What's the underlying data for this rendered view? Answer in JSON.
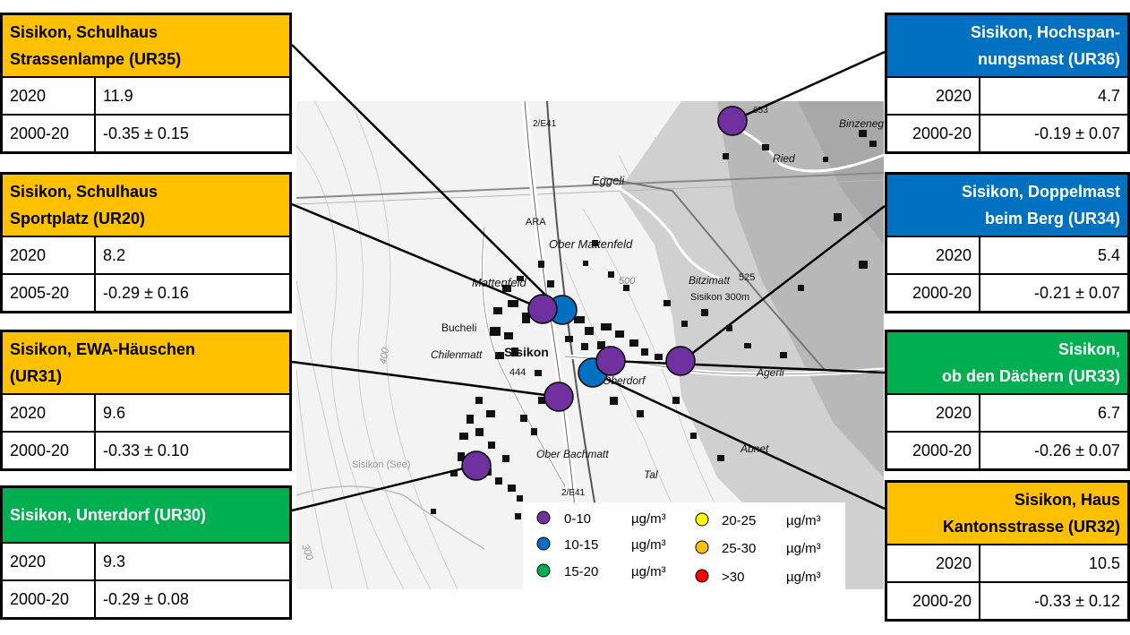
{
  "panels_left": [
    {
      "title_lines": [
        "Sisikon, Schulhaus",
        "Strassenlampe (UR35)"
      ],
      "color": "orange",
      "rows": [
        {
          "period": "2020",
          "value": "11.9"
        },
        {
          "period": "2000-20",
          "value": "-0.35 ± 0.15"
        }
      ]
    },
    {
      "title_lines": [
        "Sisikon, Schulhaus",
        "Sportplatz (UR20)"
      ],
      "color": "orange",
      "rows": [
        {
          "period": "2020",
          "value": "8.2"
        },
        {
          "period": "2005-20",
          "value": "-0.29 ± 0.16"
        }
      ]
    },
    {
      "title_lines": [
        "Sisikon, EWA-Häuschen",
        "(UR31)"
      ],
      "color": "orange",
      "rows": [
        {
          "period": "2020",
          "value": "9.6"
        },
        {
          "period": "2000-20",
          "value": "-0.33 ± 0.10"
        }
      ]
    },
    {
      "title_lines": [
        "Sisikon, Unterdorf (UR30)"
      ],
      "color": "green",
      "rows": [
        {
          "period": "2020",
          "value": "9.3"
        },
        {
          "period": "2000-20",
          "value": "-0.29 ± 0.08"
        }
      ]
    }
  ],
  "panels_right": [
    {
      "title_lines": [
        "Sisikon, Hochspan-",
        "nungsmast (UR36)"
      ],
      "color": "blue",
      "rows": [
        {
          "period": "2020",
          "value": "4.7"
        },
        {
          "period": "2000-20",
          "value": "-0.19 ± 0.07"
        }
      ]
    },
    {
      "title_lines": [
        "Sisikon, Doppelmast",
        "beim Berg (UR34)"
      ],
      "color": "blue",
      "rows": [
        {
          "period": "2020",
          "value": "5.4"
        },
        {
          "period": "2000-20",
          "value": "-0.21 ± 0.07"
        }
      ]
    },
    {
      "title_lines": [
        "Sisikon,",
        "ob den Dächern (UR33)"
      ],
      "color": "green",
      "rows": [
        {
          "period": "2020",
          "value": "6.7"
        },
        {
          "period": "2000-20",
          "value": "-0.26 ± 0.07"
        }
      ]
    },
    {
      "title_lines": [
        "Sisikon, Haus",
        "Kantonsstrasse (UR32)"
      ],
      "color": "orange",
      "rows": [
        {
          "period": "2020",
          "value": "10.5"
        },
        {
          "period": "2000-20",
          "value": "-0.33 ± 0.12"
        }
      ]
    }
  ],
  "map_labels": {
    "eggeli": "Eggeli",
    "ober_mattenfeld": "Ober Mattenfeld",
    "mattenfeld": "Mattenfeld",
    "ara": "ARA",
    "bucheli": "Bucheli",
    "chilenmatt": "Chilenmatt",
    "sisikon": "Sisikon",
    "oberdorf": "Oberdorf",
    "bitzimatt": "Bitzimatt",
    "sisikon_300": "Sisikon 300m",
    "agerli": "Ägerli",
    "ried": "Ried",
    "binzenegg": "Binzenegg",
    "ober_bachmatt": "Ober Bachmatt",
    "tal": "Tal",
    "abnet": "Abnet",
    "sisikon_see": "Sisikon (See)",
    "road_top": "2/E41",
    "road_bottom": "2/E41",
    "elev_444": "444",
    "elev_500": "500",
    "elev_525": "525",
    "elev_653": "653",
    "contour_300": "300",
    "contour_400": "400"
  },
  "legend": {
    "unit": "µg/m³",
    "items": [
      {
        "label": "0-10",
        "color": "#7030a0"
      },
      {
        "label": "10-15",
        "color": "#0070c0"
      },
      {
        "label": "15-20",
        "color": "#00b050"
      },
      {
        "label": "20-25",
        "color": "#ffff00"
      },
      {
        "label": "25-30",
        "color": "#ffc000"
      },
      {
        "label": ">30",
        "color": "#ff0000"
      }
    ]
  },
  "colors": {
    "orange": "#ffc000",
    "blue": "#0070c0",
    "green": "#00b050",
    "purple": "#7030a0"
  }
}
